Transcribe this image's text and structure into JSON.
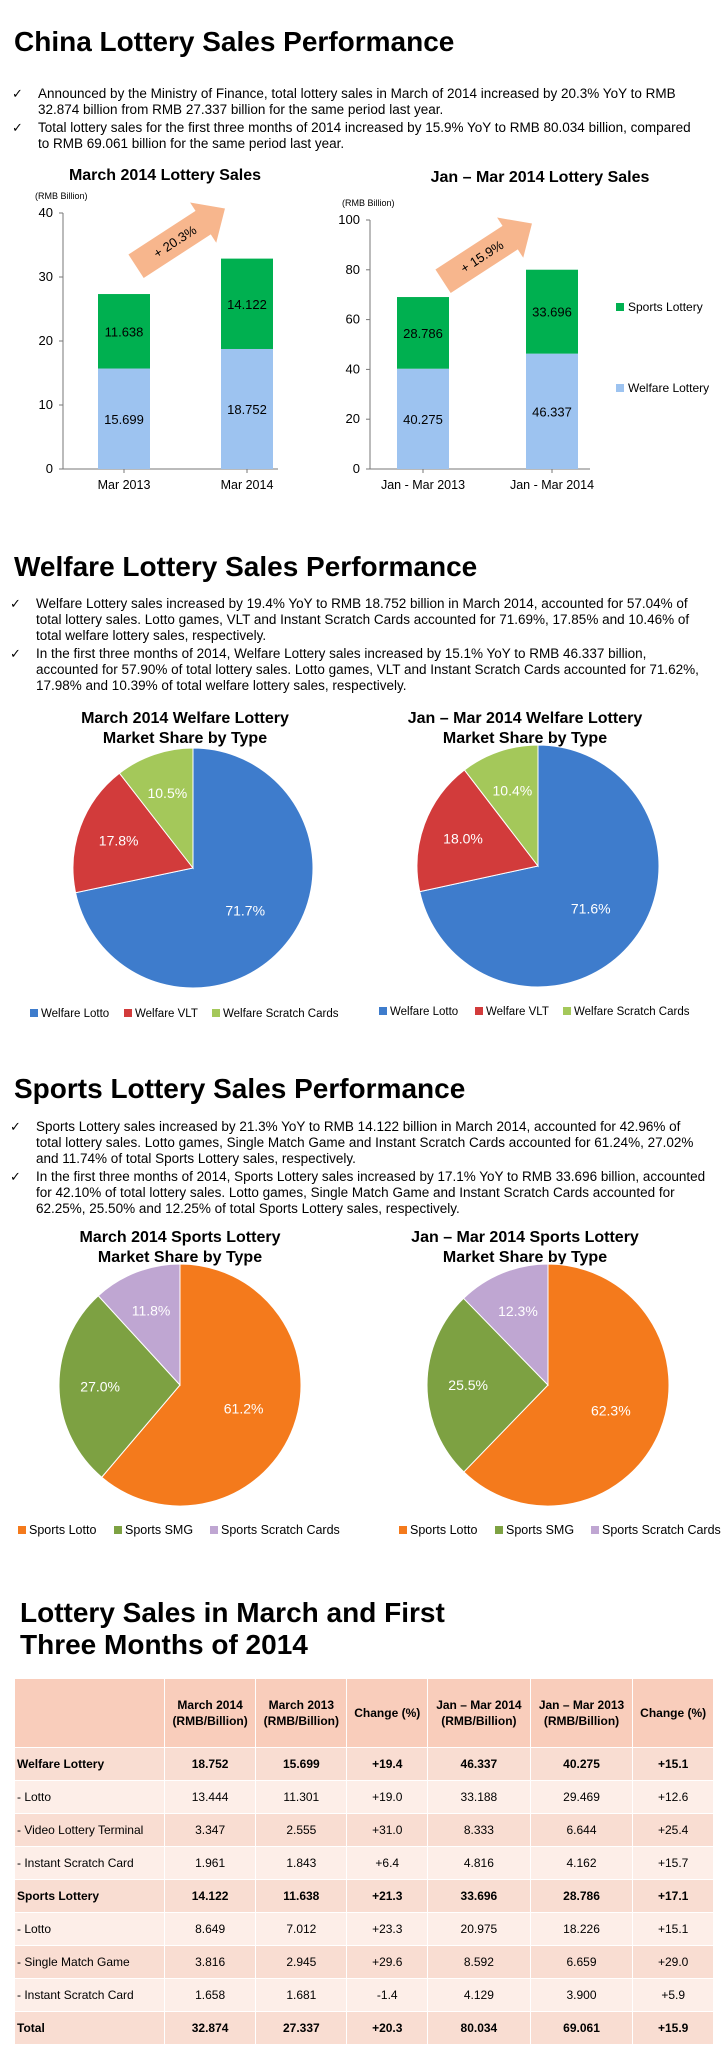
{
  "sections": {
    "overview_title": "China Lottery Sales Performance",
    "overview_bullets": [
      "Announced by the Ministry of Finance, total lottery sales in March of 2014 increased by 20.3% YoY to RMB 32.874 billion from RMB 27.337 billion for the same period last year.",
      "Total lottery sales for the first three months of 2014 increased by 15.9% YoY to RMB 80.034 billion, compared to RMB 69.061 billion for the same period last year."
    ],
    "welfare_title": "Welfare Lottery Sales Performance",
    "welfare_bullets": [
      "Welfare Lottery sales increased by 19.4% YoY to RMB 18.752 billion in March 2014, accounted for 57.04% of total lottery sales. Lotto games, VLT and Instant Scratch Cards accounted for 71.69%, 17.85% and 10.46% of total welfare lottery sales, respectively.",
      "In the first three months of 2014, Welfare Lottery sales increased by 15.1% YoY to RMB 46.337 billion, accounted for 57.90% of total lottery sales. Lotto games, VLT and Instant Scratch Cards accounted for 71.62%, 17.98% and 10.39% of total welfare lottery sales, respectively."
    ],
    "sports_title": "Sports Lottery Sales Performance",
    "sports_bullets": [
      "Sports Lottery sales increased by 21.3% YoY to RMB 14.122 billion in March 2014, accounted for 42.96% of total lottery sales. Lotto games, Single Match Game and Instant Scratch Cards accounted for 61.24%, 27.02% and 11.74% of total Sports Lottery sales, respectively.",
      "In the first three months of 2014, Sports Lottery sales increased by 17.1% YoY to RMB 33.696 billion, accounted for 42.10% of total lottery sales. Lotto games, Single Match Game and Instant Scratch Cards accounted for 62.25%, 25.50% and 12.25% of total Sports Lottery sales, respectively."
    ],
    "table_title_line1": "Lottery Sales in March and First",
    "table_title_line2": "Three Months of 2014"
  },
  "colors": {
    "sports": "#00b050",
    "welfare": "#9dc3f0",
    "arrow": "#f7b68d",
    "pie_lotto_welfare": "#3e7ccc",
    "pie_vlt": "#d23b3b",
    "pie_scratch_welfare": "#a4c85a",
    "pie_lotto_sports": "#f47a1c",
    "pie_smg": "#7da142",
    "pie_scratch_sports": "#bfa6d2"
  },
  "chart_data": [
    {
      "type": "bar",
      "stacked": true,
      "title": "March 2014 Lottery Sales",
      "ylabel": "(RMB Billion)",
      "categories": [
        "Mar 2013",
        "Mar 2014"
      ],
      "ylim": [
        0,
        40
      ],
      "yticks": [
        0,
        10,
        20,
        30,
        40
      ],
      "series": [
        {
          "name": "Welfare Lottery",
          "values": [
            15.699,
            18.752
          ]
        },
        {
          "name": "Sports Lottery",
          "values": [
            11.638,
            14.122
          ]
        }
      ],
      "annotation": "+ 20.3%"
    },
    {
      "type": "bar",
      "stacked": true,
      "title": "Jan – Mar 2014 Lottery Sales",
      "ylabel": "(RMB Billion)",
      "categories": [
        "Jan - Mar 2013",
        "Jan - Mar 2014"
      ],
      "ylim": [
        0,
        100
      ],
      "yticks": [
        0,
        20,
        40,
        60,
        80,
        100
      ],
      "series": [
        {
          "name": "Welfare Lottery",
          "values": [
            40.275,
            46.337
          ]
        },
        {
          "name": "Sports Lottery",
          "values": [
            28.786,
            33.696
          ]
        }
      ],
      "annotation": "+ 15.9%",
      "legend": [
        "Sports Lottery",
        "Welfare Lottery"
      ]
    },
    {
      "type": "pie",
      "title": "March 2014 Welfare Lottery Market Share by Type",
      "slices": [
        {
          "label": "Welfare Lotto",
          "value": 71.7,
          "text": "71.7%"
        },
        {
          "label": "Welfare VLT",
          "value": 17.8,
          "text": "17.8%"
        },
        {
          "label": "Welfare Scratch Cards",
          "value": 10.5,
          "text": "10.5%"
        }
      ]
    },
    {
      "type": "pie",
      "title": "Jan – Mar 2014 Welfare Lottery Market Share by Type",
      "slices": [
        {
          "label": "Welfare Lotto",
          "value": 71.6,
          "text": "71.6%"
        },
        {
          "label": "Welfare VLT",
          "value": 18.0,
          "text": "18.0%"
        },
        {
          "label": "Welfare Scratch Cards",
          "value": 10.4,
          "text": "10.4%"
        }
      ]
    },
    {
      "type": "pie",
      "title": "March 2014 Sports Lottery Market Share by Type",
      "slices": [
        {
          "label": "Sports Lotto",
          "value": 61.2,
          "text": "61.2%"
        },
        {
          "label": "Sports SMG",
          "value": 27.0,
          "text": "27.0%"
        },
        {
          "label": "Sports Scratch Cards",
          "value": 11.8,
          "text": "11.8%"
        }
      ]
    },
    {
      "type": "pie",
      "title": "Jan – Mar 2014 Sports Lottery Market Share by Type",
      "slices": [
        {
          "label": "Sports Lotto",
          "value": 62.3,
          "text": "62.3%"
        },
        {
          "label": "Sports SMG",
          "value": 25.5,
          "text": "25.5%"
        },
        {
          "label": "Sports Scratch Cards",
          "value": 12.3,
          "text": "12.3%"
        }
      ]
    },
    {
      "type": "table",
      "headers": [
        "",
        "March 2014\n(RMB/Billion)",
        "March 2013\n(RMB/Billion)",
        "Change (%)",
        "Jan – Mar 2014\n(RMB/Billion)",
        "Jan – Mar 2013\n(RMB/Billion)",
        "Change (%)"
      ],
      "rows": [
        {
          "bold": true,
          "cells": [
            "Welfare Lottery",
            "18.752",
            "15.699",
            "+19.4",
            "46.337",
            "40.275",
            "+15.1"
          ]
        },
        {
          "bold": false,
          "cells": [
            "- Lotto",
            "13.444",
            "11.301",
            "+19.0",
            "33.188",
            "29.469",
            "+12.6"
          ]
        },
        {
          "bold": false,
          "cells": [
            "- Video Lottery Terminal",
            "3.347",
            "2.555",
            "+31.0",
            "8.333",
            "6.644",
            "+25.4"
          ]
        },
        {
          "bold": false,
          "cells": [
            "- Instant Scratch Card",
            "1.961",
            "1.843",
            "+6.4",
            "4.816",
            "4.162",
            "+15.7"
          ]
        },
        {
          "bold": true,
          "cells": [
            "Sports Lottery",
            "14.122",
            "11.638",
            "+21.3",
            "33.696",
            "28.786",
            "+17.1"
          ]
        },
        {
          "bold": false,
          "cells": [
            "- Lotto",
            "8.649",
            "7.012",
            "+23.3",
            "20.975",
            "18.226",
            "+15.1"
          ]
        },
        {
          "bold": false,
          "cells": [
            "- Single Match Game",
            "3.816",
            "2.945",
            "+29.6",
            "8.592",
            "6.659",
            "+29.0"
          ]
        },
        {
          "bold": false,
          "cells": [
            "- Instant Scratch Card",
            "1.658",
            "1.681",
            "-1.4",
            "4.129",
            "3.900",
            "+5.9"
          ]
        },
        {
          "bold": true,
          "cells": [
            "Total",
            "32.874",
            "27.337",
            "+20.3",
            "80.034",
            "69.061",
            "+15.9"
          ]
        }
      ]
    }
  ]
}
